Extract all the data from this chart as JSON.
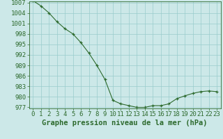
{
  "x": [
    0,
    1,
    2,
    3,
    4,
    5,
    6,
    7,
    8,
    9,
    10,
    11,
    12,
    13,
    14,
    15,
    16,
    17,
    18,
    19,
    20,
    21,
    22,
    23
  ],
  "y": [
    1007.5,
    1006.0,
    1004.0,
    1001.5,
    999.5,
    998.0,
    995.5,
    992.5,
    989.0,
    985.0,
    979.0,
    978.0,
    977.5,
    977.0,
    977.0,
    977.5,
    977.5,
    978.0,
    979.5,
    980.3,
    981.0,
    981.5,
    981.7,
    981.5
  ],
  "line_color": "#2d6a2d",
  "marker_color": "#2d6a2d",
  "bg_color": "#cce8e8",
  "grid_color": "#99cccc",
  "xlabel": "Graphe pression niveau de la mer (hPa)",
  "ylim_min": 977,
  "ylim_max": 1007,
  "ytick_step": 3,
  "xlim_min": -0.5,
  "xlim_max": 23.5,
  "tick_fontsize": 6.5,
  "label_fontsize": 7.5
}
